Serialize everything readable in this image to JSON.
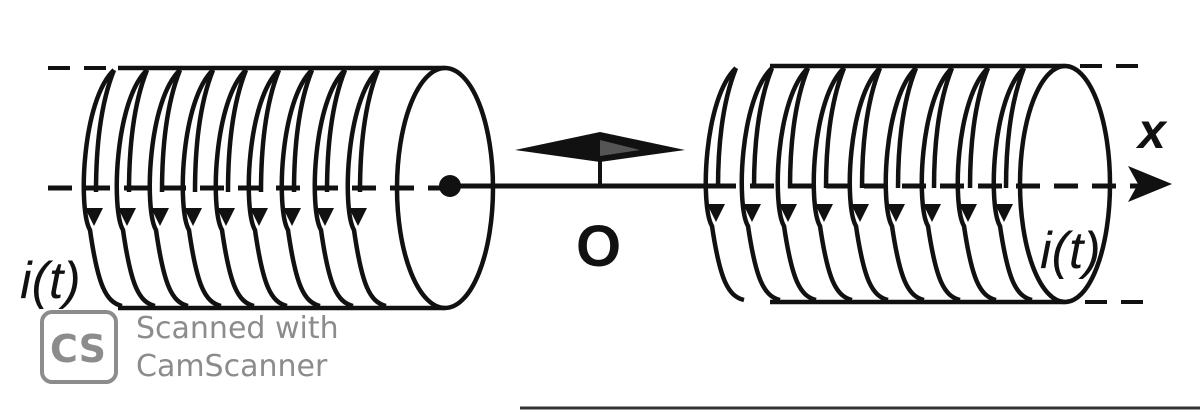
{
  "labels": {
    "current_left": "i(t)",
    "current_right": "i(t)",
    "axis": "x",
    "origin": "O"
  },
  "watermark": {
    "badge": "CS",
    "line1": "Scanned with",
    "line2": "CamScanner"
  },
  "colors": {
    "ink": "#111111",
    "watermark": "#8c8c8c"
  }
}
